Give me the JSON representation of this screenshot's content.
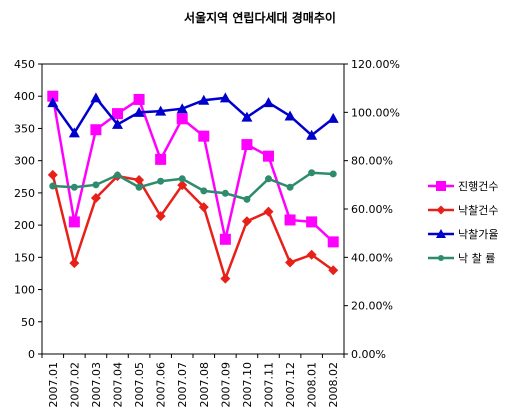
{
  "chart_data": {
    "type": "line",
    "title": "서울지역 연립다세대 경매추이",
    "categories": [
      "2007.01",
      "2007.02",
      "2007.03",
      "2007.04",
      "2007.05",
      "2007.06",
      "2007.07",
      "2007.08",
      "2007.09",
      "2007.10",
      "2007.11",
      "2007.12",
      "2008.01",
      "2008.02"
    ],
    "y_left": {
      "range": [
        0,
        450
      ],
      "ticks": [
        "0",
        "50",
        "100",
        "150",
        "200",
        "250",
        "300",
        "350",
        "400",
        "450"
      ]
    },
    "y_right": {
      "range": [
        0,
        120
      ],
      "ticks": [
        "0.00%",
        "20.00%",
        "40.00%",
        "60.00%",
        "80.00%",
        "100.00%",
        "120.00%"
      ]
    },
    "legend_position": "right",
    "grid": false,
    "series": [
      {
        "name": "진행건수",
        "axis": "left",
        "color": "#ff00ff",
        "marker": "square",
        "values": [
          400,
          205,
          348,
          373,
          395,
          302,
          365,
          338,
          178,
          325,
          307,
          208,
          205,
          174
        ]
      },
      {
        "name": "낙찰건수",
        "axis": "left",
        "color": "#e8201a",
        "marker": "diamond",
        "values": [
          278,
          141,
          242,
          276,
          270,
          214,
          262,
          228,
          117,
          206,
          221,
          142,
          154,
          130
        ]
      },
      {
        "name": "낙찰가율",
        "axis": "right",
        "color": "#0000cc",
        "marker": "triangle",
        "values": [
          104,
          91.5,
          106,
          95,
          100,
          100.5,
          101.5,
          105,
          106,
          98,
          104,
          98.5,
          90.5,
          97.5
        ]
      },
      {
        "name": "낙 찰 률",
        "axis": "right",
        "color": "#2e8b6e",
        "marker": "circle",
        "values": [
          69.5,
          69,
          70,
          74,
          69,
          71.5,
          72.5,
          67.5,
          66.5,
          64,
          72.5,
          69,
          75,
          74.5
        ]
      }
    ]
  }
}
